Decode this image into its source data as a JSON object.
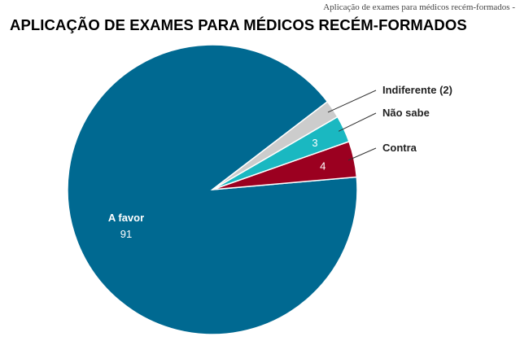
{
  "caption": "Aplicação de exames para médicos recém-formados -",
  "chart_data": {
    "type": "pie",
    "title": "APLICAÇÃO DE EXAMES PARA MÉDICOS RECÉM-FORMADOS",
    "slices": [
      {
        "name": "A favor",
        "value": 91,
        "label": "91",
        "color": "#006991"
      },
      {
        "name": "Contra",
        "value": 4,
        "label": "4",
        "color": "#9b0020"
      },
      {
        "name": "Não sabe",
        "value": 3,
        "label": "3",
        "color": "#1ab8c1"
      },
      {
        "name": "Indiferente (2)",
        "value": 2,
        "label": "",
        "color": "#cccccc"
      }
    ]
  }
}
